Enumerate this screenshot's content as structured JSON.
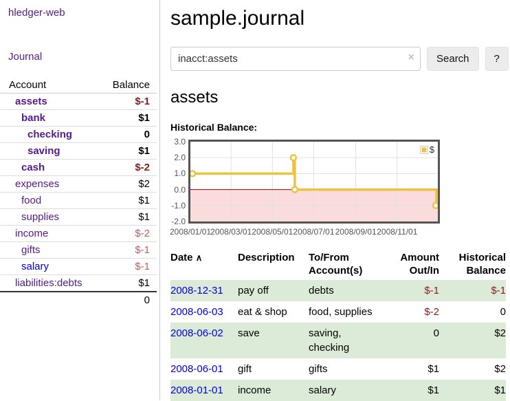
{
  "colors": {
    "purple": "#551a8b",
    "blue": "#0000dd",
    "darkred": "#8b1a1a",
    "lightred": "#c06060",
    "row_green": "#dcead8",
    "gold": "#edc240",
    "chart_pink": "#fbdcdc",
    "zero_line": "#a40000",
    "border_gray": "#545454"
  },
  "app": {
    "brand": "hledger-web",
    "nav_journal": "Journal"
  },
  "sidebar": {
    "header": {
      "account": "Account",
      "balance": "Balance"
    },
    "accounts": [
      {
        "name": "assets",
        "balance": "$-1",
        "cls": "lvl1 purple bold",
        "balcls": "bold darkred"
      },
      {
        "name": "bank",
        "balance": "$1",
        "cls": "lvl2 purple bold",
        "balcls": "bold"
      },
      {
        "name": "checking",
        "balance": "0",
        "cls": "lvl3 purple bold",
        "balcls": "bold"
      },
      {
        "name": "saving",
        "balance": "$1",
        "cls": "lvl3 purple bold",
        "balcls": "bold"
      },
      {
        "name": "cash",
        "balance": "$-2",
        "cls": "lvl2 purple bold",
        "balcls": "bold darkred"
      },
      {
        "name": "expenses",
        "balance": "$2",
        "cls": "lvl1 purple",
        "balcls": ""
      },
      {
        "name": "food",
        "balance": "$1",
        "cls": "lvl2 purple",
        "balcls": ""
      },
      {
        "name": "supplies",
        "balance": "$1",
        "cls": "lvl2 purple",
        "balcls": ""
      },
      {
        "name": "income",
        "balance": "$-2",
        "cls": "lvl1 purple",
        "balcls": "lightred"
      },
      {
        "name": "gifts",
        "balance": "$-1",
        "cls": "lvl2 purple",
        "balcls": "lightred"
      },
      {
        "name": "salary",
        "balance": "$-1",
        "cls": "lvl2 blue",
        "balcls": "lightred"
      },
      {
        "name": "liabilities:debts",
        "balance": "$1",
        "cls": "lvl1 purple",
        "balcls": ""
      }
    ],
    "total": "0"
  },
  "header": {
    "title": "sample.journal"
  },
  "search": {
    "value": "inacct:assets",
    "clear_icon": "×",
    "button": "Search",
    "help": "?"
  },
  "account_page": {
    "heading": "assets",
    "chart_label": "Historical Balance:"
  },
  "chart_data": {
    "type": "line",
    "step": true,
    "title": "Historical Balance",
    "series": [
      {
        "name": "$",
        "points": [
          [
            "2008-01-01",
            1
          ],
          [
            "2008-06-01",
            2
          ],
          [
            "2008-06-03",
            0
          ],
          [
            "2008-12-31",
            -1
          ]
        ]
      }
    ],
    "x_ticks": [
      "2008/01/01",
      "2008/03/01",
      "2008/05/01",
      "2008/07/01",
      "2008/09/01",
      "2008/11/01"
    ],
    "y_ticks": [
      "3.0",
      "2.0",
      "1.0",
      "0.0",
      "-1.0",
      "-2.0"
    ],
    "ylim": [
      -2,
      3
    ],
    "x_range": [
      "2008-01-01",
      "2008-12-31"
    ],
    "legend": "$",
    "grid": true,
    "legend_position": "top-right",
    "negative_region_fill": "#fbdcdc",
    "zero_line_color": "#a40000",
    "series_color": "#edc240"
  },
  "table": {
    "headers": {
      "date": "Date",
      "description": "Description",
      "tofrom": "To/From\nAccount(s)",
      "amount": "Amount\nOut/In",
      "historical": "Historical\nBalance"
    },
    "icons": {
      "sort_asc": "∧"
    },
    "rows": [
      {
        "date": "2008-12-31",
        "description": "pay off",
        "accounts": "debts",
        "amount": "$-1",
        "balance": "$-1",
        "rowcls": "green",
        "amountcls": "darkred",
        "balancecls": "darkred"
      },
      {
        "date": "2008-06-03",
        "description": "eat & shop",
        "accounts": "food, supplies",
        "amount": "$-2",
        "balance": "0",
        "rowcls": "",
        "amountcls": "darkred",
        "balancecls": ""
      },
      {
        "date": "2008-06-02",
        "description": "save",
        "accounts": "saving,\nchecking",
        "amount": "0",
        "balance": "$2",
        "rowcls": "green",
        "amountcls": "",
        "balancecls": ""
      },
      {
        "date": "2008-06-01",
        "description": "gift",
        "accounts": "gifts",
        "amount": "$1",
        "balance": "$2",
        "rowcls": "",
        "amountcls": "",
        "balancecls": ""
      },
      {
        "date": "2008-01-01",
        "description": "income",
        "accounts": "salary",
        "amount": "$1",
        "balance": "$1",
        "rowcls": "green",
        "amountcls": "",
        "balancecls": ""
      }
    ]
  }
}
